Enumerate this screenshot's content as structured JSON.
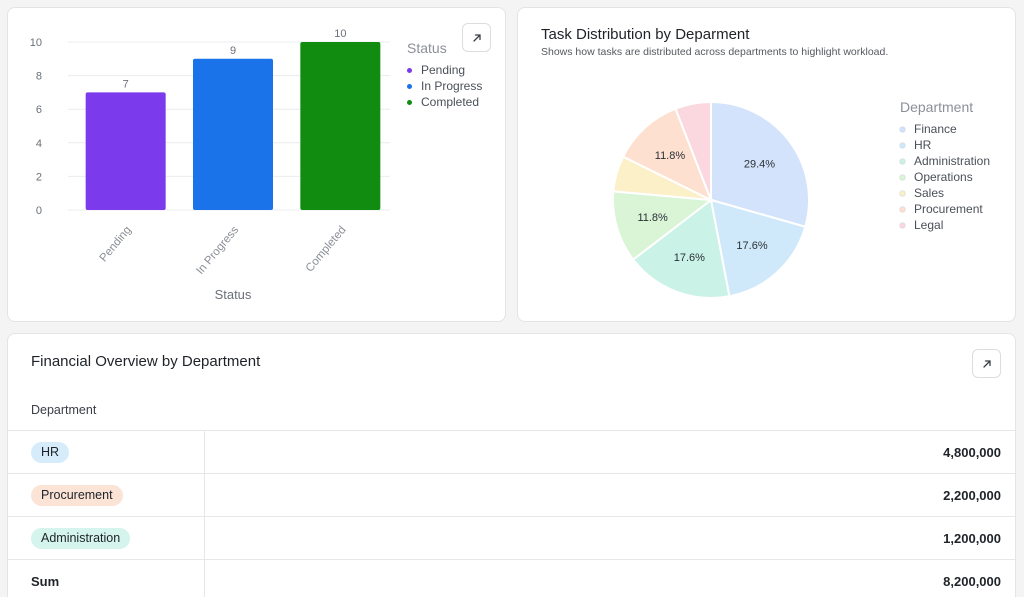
{
  "bar_card": {
    "expand_icon": "arrow-up-right-icon",
    "x_axis_label": "Status",
    "legend_title": "Status"
  },
  "pie_card": {
    "title": "Task Distribution by Deparment",
    "subtitle": "Shows how tasks are distributed across departments to highlight workload.",
    "legend_title": "Department"
  },
  "table_card": {
    "title": "Financial Overview by Department",
    "expand_icon": "arrow-up-right-icon",
    "column_header": "Department",
    "rows": [
      {
        "department": "HR",
        "amount": "4,800,000",
        "badge_color": "#d6ecfb"
      },
      {
        "department": "Procurement",
        "amount": "2,200,000",
        "badge_color": "#fbe3d6"
      },
      {
        "department": "Administration",
        "amount": "1,200,000",
        "badge_color": "#d4f4ec"
      }
    ],
    "sum_label": "Sum",
    "sum_amount": "8,200,000"
  },
  "chart_data": [
    {
      "type": "bar",
      "categories": [
        "Pending",
        "In Progress",
        "Completed"
      ],
      "values": [
        7,
        9,
        10
      ],
      "colors": [
        "#7c3aed",
        "#1a73e8",
        "#118c11"
      ],
      "data_labels": [
        "7",
        "9",
        "10"
      ],
      "xlabel": "Status",
      "ylabel": "",
      "yticks": [
        "0",
        "2",
        "4",
        "6",
        "8",
        "10"
      ],
      "ylim": [
        0,
        10
      ],
      "grid": true,
      "legend": {
        "title": "Status",
        "placement": "right",
        "entries": [
          "Pending",
          "In Progress",
          "Completed"
        ]
      }
    },
    {
      "type": "pie",
      "labels": [
        "Finance",
        "HR",
        "Administration",
        "Operations",
        "Sales",
        "Procurement",
        "Legal"
      ],
      "values": [
        29.4,
        17.6,
        17.6,
        11.8,
        5.9,
        11.8,
        5.9
      ],
      "slice_labels": [
        "29.4%",
        "17.6%",
        "17.6%",
        "11.8%",
        "",
        "11.8%",
        ""
      ],
      "colors": [
        "#d3e3fb",
        "#cfe9fb",
        "#cbf2e7",
        "#d9f5d6",
        "#fcf0c8",
        "#fde0cf",
        "#fbd8e0"
      ],
      "legend": {
        "title": "Department",
        "placement": "right",
        "entries": [
          "Finance",
          "HR",
          "Administration",
          "Operations",
          "Sales",
          "Procurement",
          "Legal"
        ]
      }
    }
  ]
}
